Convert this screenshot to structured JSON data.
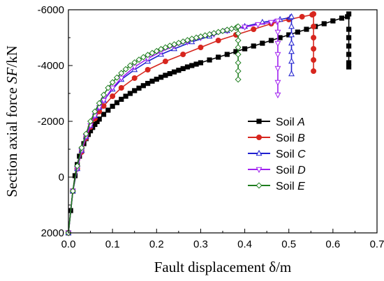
{
  "chart_data": {
    "type": "line",
    "xlabel": "Fault displacement δ/m",
    "ylabel": "Section axial force SF/kN",
    "ylabel_parts": {
      "prefix": "Section axial force ",
      "italic": "SF",
      "suffix": "/kN"
    },
    "xlim": [
      0.0,
      0.7
    ],
    "ylim": [
      2000,
      -6000
    ],
    "y_axis_inverted": true,
    "x_ticks": [
      0.0,
      0.1,
      0.2,
      0.3,
      0.4,
      0.5,
      0.6,
      0.7
    ],
    "x_tick_labels": [
      "0.0",
      "0.1",
      "0.2",
      "0.3",
      "0.4",
      "0.5",
      "0.6",
      "0.7"
    ],
    "y_ticks": [
      2000,
      0,
      -2000,
      -4000,
      -6000
    ],
    "y_tick_labels": [
      "2000",
      "0",
      "-2000",
      "-4000",
      "-6000"
    ],
    "grid": false,
    "legend_position": "right",
    "series": [
      {
        "name": "Soil A",
        "label_prefix": "Soil ",
        "label_italic": "A",
        "color": "#000000",
        "marker": "square",
        "x": [
          0.0,
          0.005,
          0.01,
          0.015,
          0.02,
          0.025,
          0.03,
          0.035,
          0.04,
          0.045,
          0.05,
          0.055,
          0.06,
          0.065,
          0.07,
          0.08,
          0.09,
          0.1,
          0.11,
          0.12,
          0.13,
          0.14,
          0.15,
          0.16,
          0.17,
          0.18,
          0.19,
          0.2,
          0.21,
          0.22,
          0.23,
          0.24,
          0.25,
          0.26,
          0.27,
          0.28,
          0.29,
          0.3,
          0.32,
          0.34,
          0.36,
          0.38,
          0.4,
          0.42,
          0.44,
          0.46,
          0.48,
          0.5,
          0.52,
          0.54,
          0.56,
          0.58,
          0.6,
          0.62,
          0.633,
          0.636,
          0.636,
          0.636,
          0.636,
          0.636,
          0.636,
          0.636
        ],
        "y": [
          2000,
          1200,
          500,
          -50,
          -450,
          -750,
          -1000,
          -1200,
          -1380,
          -1530,
          -1660,
          -1780,
          -1890,
          -1990,
          -2080,
          -2250,
          -2400,
          -2540,
          -2670,
          -2790,
          -2900,
          -3000,
          -3100,
          -3190,
          -3280,
          -3360,
          -3440,
          -3510,
          -3580,
          -3650,
          -3710,
          -3770,
          -3830,
          -3890,
          -3950,
          -4000,
          -4050,
          -4100,
          -4200,
          -4300,
          -4400,
          -4500,
          -4600,
          -4700,
          -4800,
          -4900,
          -5000,
          -5100,
          -5200,
          -5300,
          -5400,
          -5500,
          -5600,
          -5700,
          -5750,
          -5850,
          -5300,
          -5000,
          -4700,
          -4400,
          -4100,
          -3950
        ]
      },
      {
        "name": "Soil B",
        "label_prefix": "Soil ",
        "label_italic": "B",
        "color": "#d7261e",
        "marker": "circle",
        "x": [
          0.0,
          0.01,
          0.02,
          0.03,
          0.04,
          0.05,
          0.06,
          0.07,
          0.08,
          0.1,
          0.12,
          0.15,
          0.18,
          0.22,
          0.26,
          0.3,
          0.34,
          0.38,
          0.42,
          0.46,
          0.5,
          0.53,
          0.553,
          0.556,
          0.556,
          0.556,
          0.556,
          0.556,
          0.556
        ],
        "y": [
          2000,
          500,
          -300,
          -900,
          -1400,
          -1800,
          -2100,
          -2350,
          -2550,
          -2900,
          -3200,
          -3550,
          -3850,
          -4150,
          -4400,
          -4650,
          -4900,
          -5100,
          -5300,
          -5500,
          -5650,
          -5750,
          -5820,
          -5850,
          -5400,
          -5000,
          -4600,
          -4200,
          -3800
        ]
      },
      {
        "name": "Soil C",
        "label_prefix": "Soil ",
        "label_italic": "C",
        "color": "#1f1fcf",
        "marker": "triangle-up",
        "x": [
          0.0,
          0.01,
          0.02,
          0.03,
          0.04,
          0.05,
          0.06,
          0.07,
          0.08,
          0.1,
          0.12,
          0.15,
          0.18,
          0.21,
          0.24,
          0.28,
          0.32,
          0.36,
          0.4,
          0.44,
          0.48,
          0.503,
          0.506,
          0.506,
          0.506,
          0.506,
          0.506,
          0.506,
          0.506
        ],
        "y": [
          2000,
          500,
          -300,
          -950,
          -1450,
          -1850,
          -2200,
          -2500,
          -2750,
          -3150,
          -3500,
          -3850,
          -4150,
          -4400,
          -4600,
          -4850,
          -5050,
          -5250,
          -5400,
          -5550,
          -5650,
          -5720,
          -5750,
          -5400,
          -5100,
          -4800,
          -4500,
          -4150,
          -3700
        ]
      },
      {
        "name": "Soil D",
        "label_prefix": "Soil ",
        "label_italic": "D",
        "color": "#a020f0",
        "marker": "triangle-down",
        "x": [
          0.0,
          0.01,
          0.02,
          0.03,
          0.04,
          0.05,
          0.06,
          0.07,
          0.08,
          0.1,
          0.12,
          0.15,
          0.18,
          0.21,
          0.24,
          0.27,
          0.3,
          0.33,
          0.36,
          0.4,
          0.43,
          0.46,
          0.473,
          0.475,
          0.475,
          0.475,
          0.475,
          0.475,
          0.475,
          0.475
        ],
        "y": [
          2000,
          500,
          -300,
          -950,
          -1450,
          -1850,
          -2200,
          -2500,
          -2750,
          -3200,
          -3550,
          -3950,
          -4250,
          -4500,
          -4700,
          -4850,
          -5000,
          -5120,
          -5250,
          -5380,
          -5470,
          -5550,
          -5580,
          -5600,
          -5200,
          -4800,
          -4400,
          -3900,
          -3400,
          -2950
        ]
      },
      {
        "name": "Soil E",
        "label_prefix": "Soil ",
        "label_italic": "E",
        "color": "#1e7d1e",
        "marker": "diamond",
        "x": [
          0.0,
          0.01,
          0.02,
          0.03,
          0.04,
          0.05,
          0.06,
          0.07,
          0.08,
          0.09,
          0.1,
          0.11,
          0.12,
          0.13,
          0.14,
          0.15,
          0.16,
          0.17,
          0.18,
          0.19,
          0.2,
          0.21,
          0.22,
          0.23,
          0.24,
          0.25,
          0.26,
          0.27,
          0.28,
          0.29,
          0.3,
          0.31,
          0.32,
          0.33,
          0.34,
          0.35,
          0.36,
          0.37,
          0.38,
          0.383,
          0.385,
          0.385,
          0.385,
          0.385,
          0.385,
          0.385,
          0.385,
          0.385
        ],
        "y": [
          2000,
          500,
          -400,
          -1050,
          -1550,
          -2000,
          -2350,
          -2650,
          -2950,
          -3200,
          -3400,
          -3570,
          -3730,
          -3870,
          -4000,
          -4110,
          -4210,
          -4300,
          -4380,
          -4450,
          -4520,
          -4590,
          -4650,
          -4710,
          -4760,
          -4810,
          -4860,
          -4910,
          -4960,
          -5000,
          -5040,
          -5080,
          -5120,
          -5160,
          -5200,
          -5240,
          -5280,
          -5320,
          -5350,
          -5380,
          -5400,
          -5150,
          -4900,
          -4650,
          -4400,
          -4100,
          -3800,
          -3500
        ]
      }
    ]
  }
}
